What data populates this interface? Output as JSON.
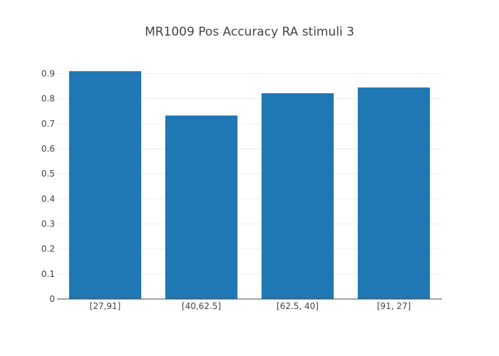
{
  "chart_data": {
    "type": "bar",
    "title": "MR1009 Pos Accuracy RA stimuli 3",
    "xlabel": "",
    "ylabel": "",
    "categories": [
      "[27,91]",
      "[40,62.5]",
      "[62.5, 40]",
      "[91, 27]"
    ],
    "values": [
      0.91,
      0.733,
      0.822,
      0.845
    ],
    "ylim": [
      0,
      0.91
    ],
    "yticks": [
      0,
      0.1,
      0.2,
      0.3,
      0.4,
      0.5,
      0.6,
      0.7,
      0.8,
      0.9
    ],
    "grid": true,
    "bar_color": "#1f77b4",
    "grid_color": "#eeeeee",
    "axis_color": "#444444"
  }
}
